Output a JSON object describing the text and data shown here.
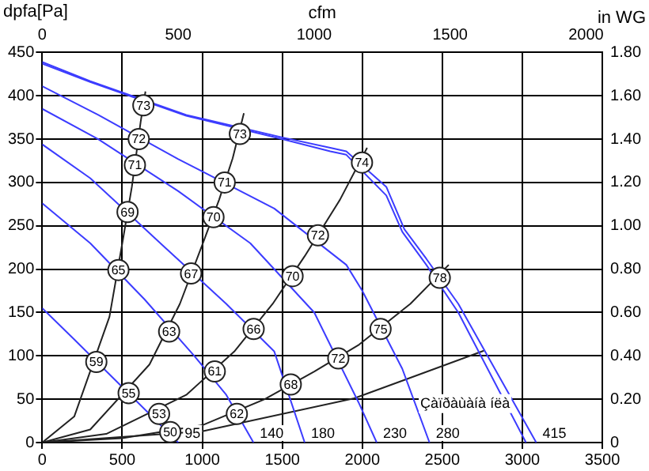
{
  "chart_data": {
    "type": "line",
    "ylabel": "dpfa[Pa]",
    "x2label": "cfm",
    "y2label": "in WG",
    "xlim": [
      0,
      3500
    ],
    "xticks": [
      0,
      500,
      1000,
      1500,
      2000,
      2500,
      3000,
      3500
    ],
    "ylim": [
      0,
      450
    ],
    "yticks": [
      0,
      50,
      100,
      150,
      200,
      250,
      300,
      350,
      400,
      450
    ],
    "x2lim": [
      0,
      2060
    ],
    "x2ticks": [
      0,
      500,
      1000,
      1500,
      2000
    ],
    "y2lim": [
      0,
      1.8
    ],
    "y2ticks": [
      0,
      {
        "value": 0.2,
        "label": "0.20"
      },
      {
        "value": 0.4,
        "label": "0.40"
      },
      {
        "value": 0.6,
        "label": "0.60"
      },
      {
        "value": 0.8,
        "label": "0.80"
      },
      {
        "value": 1,
        "label": "1.00"
      },
      {
        "value": 1.2,
        "label": "1.20"
      },
      {
        "value": 1.4,
        "label": "1.40"
      },
      {
        "value": 1.6,
        "label": "1.60"
      },
      {
        "value": 1.8,
        "label": "1.80"
      }
    ],
    "grid": true,
    "legend": false,
    "line_style": "solid",
    "series": [
      {
        "name": "415",
        "color": "#3c3cff",
        "x": [
          0,
          300,
          900,
          1500,
          1800,
          1900,
          2150,
          2263,
          2400,
          2600,
          3087
        ],
        "values": [
          439,
          417,
          378,
          352,
          340,
          336,
          295,
          246,
          212,
          160,
          0
        ]
      },
      {
        "color": "#3c3cff",
        "x": [
          0,
          300,
          900,
          1500,
          1800,
          1900,
          2150,
          2250,
          2400,
          2600,
          3023
        ],
        "values": [
          437,
          416,
          377,
          350,
          336,
          332,
          285,
          243,
          205,
          150,
          0
        ]
      },
      {
        "name": "280",
        "color": "#3c3cff",
        "x": [
          0,
          350,
          850,
          1450,
          1900,
          2000,
          2250,
          2420
        ],
        "values": [
          411,
          378,
          327,
          270,
          205,
          175,
          85,
          0
        ]
      },
      {
        "name": "230",
        "color": "#3c3cff",
        "x": [
          0,
          350,
          850,
          1300,
          1700,
          1980,
          2090
        ],
        "values": [
          385,
          350,
          290,
          230,
          150,
          45,
          0
        ]
      },
      {
        "name": "180",
        "color": "#3c3cff",
        "x": [
          0,
          300,
          750,
          1150,
          1450,
          1640
        ],
        "values": [
          344,
          305,
          228,
          160,
          105,
          0
        ]
      },
      {
        "name": "140",
        "color": "#3c3cff",
        "x": [
          0,
          300,
          640,
          950,
          1150,
          1320
        ],
        "values": [
          276,
          230,
          165,
          100,
          55,
          0
        ]
      },
      {
        "name": "95",
        "color": "#3c3cff",
        "x": [
          0,
          200,
          440,
          850
        ],
        "values": [
          155,
          119,
          75,
          0
        ]
      },
      {
        "color": "#222222",
        "x": [
          0,
          200,
          420,
          505,
          560,
          615,
          645
        ],
        "values": [
          0,
          30,
          145,
          235,
          295,
          370,
          405
        ]
      },
      {
        "color": "#222222",
        "x": [
          0,
          300,
          670,
          860,
          1000,
          1105,
          1190,
          1260
        ],
        "values": [
          0,
          15,
          90,
          160,
          228,
          280,
          328,
          380
        ]
      },
      {
        "color": "#222222",
        "x": [
          0,
          400,
          900,
          1200,
          1440,
          1640,
          1860,
          2030
        ],
        "values": [
          0,
          10,
          55,
          105,
          160,
          215,
          280,
          340
        ]
      },
      {
        "color": "#222222",
        "x": [
          0,
          500,
          1000,
          1390,
          1700,
          1980,
          2300,
          2540
        ],
        "values": [
          0,
          5,
          20,
          50,
          82,
          113,
          160,
          205
        ]
      },
      {
        "color": "#222222",
        "x": [
          0,
          1000,
          1950,
          2760
        ],
        "values": [
          0,
          13,
          51,
          106
        ]
      }
    ],
    "annotations": [
      {
        "text": "73",
        "x": 632,
        "y": 389
      },
      {
        "text": "72",
        "x": 603,
        "y": 350
      },
      {
        "text": "71",
        "x": 579,
        "y": 320
      },
      {
        "text": "69",
        "x": 533,
        "y": 266
      },
      {
        "text": "65",
        "x": 476,
        "y": 199
      },
      {
        "text": "59",
        "x": 338,
        "y": 93
      },
      {
        "text": "73",
        "x": 1235,
        "y": 356
      },
      {
        "text": "71",
        "x": 1140,
        "y": 300
      },
      {
        "text": "70",
        "x": 1070,
        "y": 260
      },
      {
        "text": "67",
        "x": 930,
        "y": 195
      },
      {
        "text": "63",
        "x": 793,
        "y": 128
      },
      {
        "text": "55",
        "x": 540,
        "y": 57
      },
      {
        "text": "74",
        "x": 1998,
        "y": 323
      },
      {
        "text": "72",
        "x": 1723,
        "y": 239
      },
      {
        "text": "70",
        "x": 1564,
        "y": 192
      },
      {
        "text": "66",
        "x": 1321,
        "y": 131
      },
      {
        "text": "61",
        "x": 1078,
        "y": 82
      },
      {
        "text": "53",
        "x": 730,
        "y": 33
      },
      {
        "text": "78",
        "x": 2484,
        "y": 190
      },
      {
        "text": "75",
        "x": 2114,
        "y": 131
      },
      {
        "text": "72",
        "x": 1850,
        "y": 97
      },
      {
        "text": "68",
        "x": 1553,
        "y": 67
      },
      {
        "text": "62",
        "x": 1216,
        "y": 33
      },
      {
        "text": "50",
        "x": 800,
        "y": 12
      },
      "Çàïðàùàíà íëà"
    ]
  }
}
